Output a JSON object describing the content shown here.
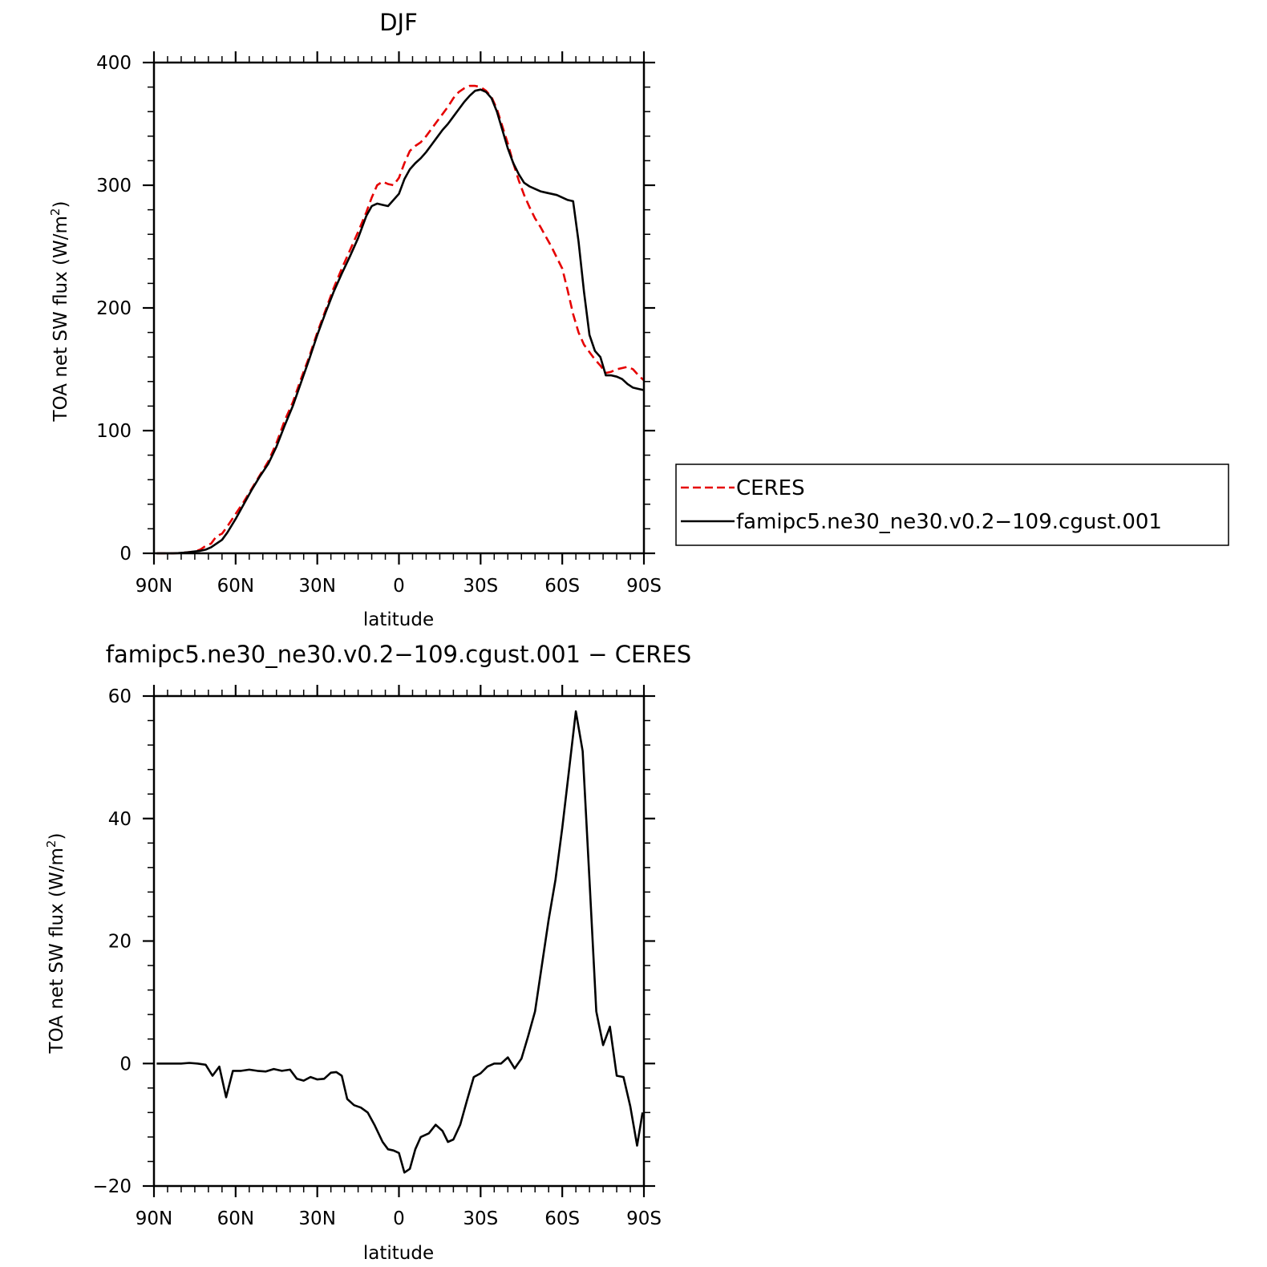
{
  "chart_data": [
    {
      "type": "line",
      "title": "DJF",
      "xlabel": "latitude",
      "ylabel": "TOA net SW flux (W/m²)",
      "ylabel_base": "TOA net SW flux (W/m",
      "ylabel_sup": "2",
      "ylabel_close": ")",
      "xlim": [
        -90,
        90
      ],
      "ylim": [
        0,
        400
      ],
      "x_ticks": [
        {
          "value": -90,
          "label": "90N"
        },
        {
          "value": -60,
          "label": "60N"
        },
        {
          "value": -30,
          "label": "30N"
        },
        {
          "value": 0,
          "label": "0"
        },
        {
          "value": 30,
          "label": "30S"
        },
        {
          "value": 60,
          "label": "60S"
        },
        {
          "value": 90,
          "label": "90S"
        }
      ],
      "y_ticks": [
        {
          "value": 0,
          "label": "0"
        },
        {
          "value": 100,
          "label": "100"
        },
        {
          "value": 200,
          "label": "200"
        },
        {
          "value": 300,
          "label": "300"
        },
        {
          "value": 400,
          "label": "400"
        }
      ],
      "grid": false,
      "legend_position": "right",
      "series": [
        {
          "name": "CERES",
          "color": "#e60000",
          "dash": true,
          "x": [
            -89,
            -87,
            -85,
            -83,
            -81,
            -79,
            -77,
            -75,
            -73,
            -71,
            -69,
            -67,
            -65,
            -63,
            -60,
            -57,
            -54,
            -51,
            -48,
            -45,
            -42,
            -39,
            -36,
            -33,
            -30,
            -27,
            -24,
            -21,
            -18,
            -15,
            -12,
            -10,
            -8,
            -6,
            -4,
            -2,
            0,
            2,
            4,
            6,
            8,
            10,
            12,
            14,
            16,
            18,
            20,
            22,
            24,
            26,
            28,
            30,
            32,
            34,
            36,
            38,
            40,
            42,
            44,
            46,
            48,
            50,
            52,
            54,
            56,
            58,
            60,
            62,
            64,
            66,
            68,
            70,
            72,
            74,
            76,
            78,
            80,
            82,
            84,
            86,
            88,
            90
          ],
          "y": [
            0,
            0,
            0,
            0,
            0.2,
            0.5,
            1,
            1.5,
            3,
            6,
            8,
            14,
            16,
            22,
            32,
            42,
            53,
            64,
            75,
            90,
            108,
            123,
            142,
            160,
            180,
            198,
            216,
            232,
            247,
            262,
            278,
            290,
            300,
            303,
            301,
            300,
            306,
            318,
            328,
            332,
            335,
            340,
            346,
            352,
            358,
            364,
            371,
            376,
            379,
            381,
            381,
            380,
            377,
            372,
            362,
            348,
            334,
            318,
            304,
            292,
            282,
            273,
            266,
            258,
            250,
            241,
            232,
            214,
            195,
            180,
            170,
            164,
            158,
            153,
            147,
            148,
            150,
            151,
            152,
            150,
            145,
            141
          ]
        },
        {
          "name": "famipc5.ne30_ne30.v0.2−109.cgust.001",
          "color": "#000000",
          "dash": false,
          "x": [
            -89,
            -87,
            -85,
            -83,
            -81,
            -79,
            -77,
            -75,
            -73,
            -71,
            -69,
            -67,
            -65,
            -63,
            -60,
            -57,
            -54,
            -51,
            -48,
            -45,
            -42,
            -39,
            -36,
            -33,
            -30,
            -27,
            -24,
            -21,
            -18,
            -15,
            -12,
            -10,
            -8,
            -6,
            -4,
            -2,
            0,
            2,
            4,
            6,
            8,
            10,
            12,
            14,
            16,
            18,
            20,
            22,
            24,
            26,
            28,
            30,
            32,
            34,
            36,
            38,
            40,
            42,
            44,
            46,
            48,
            50,
            52,
            54,
            56,
            58,
            60,
            62,
            64,
            66,
            68,
            70,
            72,
            74,
            76,
            78,
            80,
            82,
            84,
            86,
            88,
            90
          ],
          "y": [
            0,
            0,
            0,
            0,
            0.2,
            0.5,
            1,
            1.5,
            2,
            3,
            5,
            8,
            11,
            17,
            28,
            40,
            52,
            63,
            73,
            87,
            104,
            120,
            139,
            158,
            178,
            196,
            213,
            228,
            242,
            257,
            275,
            283,
            285,
            284,
            283,
            288,
            293,
            305,
            313,
            318,
            322,
            327,
            333,
            339,
            345,
            350,
            356,
            362,
            368,
            373,
            377,
            378,
            376,
            371,
            360,
            345,
            330,
            318,
            309,
            302,
            299,
            297,
            295,
            294,
            293,
            292,
            290,
            288,
            287,
            254,
            213,
            178,
            165,
            160,
            145,
            145,
            144,
            142,
            138,
            135,
            134,
            133
          ]
        }
      ]
    },
    {
      "type": "line",
      "title": "famipc5.ne30_ne30.v0.2−109.cgust.001  −  CERES",
      "xlabel": "latitude",
      "ylabel": "TOA net SW flux (W/m²)",
      "ylabel_base": "TOA net SW flux (W/m",
      "ylabel_sup": "2",
      "ylabel_close": ")",
      "xlim": [
        -90,
        90
      ],
      "ylim": [
        -20,
        60
      ],
      "x_ticks": [
        {
          "value": -90,
          "label": "90N"
        },
        {
          "value": -60,
          "label": "60N"
        },
        {
          "value": -30,
          "label": "30N"
        },
        {
          "value": 0,
          "label": "0"
        },
        {
          "value": 30,
          "label": "30S"
        },
        {
          "value": 60,
          "label": "60S"
        },
        {
          "value": 90,
          "label": "90S"
        }
      ],
      "y_ticks": [
        {
          "value": -20,
          "label": "−20"
        },
        {
          "value": 0,
          "label": "0"
        },
        {
          "value": 20,
          "label": "20"
        },
        {
          "value": 40,
          "label": "40"
        },
        {
          "value": 60,
          "label": "60"
        }
      ],
      "grid": false,
      "series": [
        {
          "color": "#000000",
          "dash": false,
          "x": [
            -89,
            -86,
            -83,
            -80,
            -77,
            -74,
            -71,
            -68.5,
            -66,
            -63.5,
            -61,
            -58,
            -55,
            -52,
            -49,
            -46,
            -43,
            -40,
            -37.5,
            -35,
            -32.5,
            -30,
            -27.5,
            -25,
            -23,
            -21,
            -19,
            -16.5,
            -14,
            -11.5,
            -9,
            -6,
            -4,
            -2,
            0,
            2,
            4,
            6,
            8,
            11,
            13.5,
            16,
            18,
            20,
            22.5,
            25,
            27.5,
            30,
            32.5,
            35,
            37.5,
            40,
            42.5,
            45,
            47.5,
            50,
            52.5,
            55,
            57.5,
            60,
            62.5,
            65,
            67.5,
            70,
            72.5,
            75,
            77.5,
            80,
            82.5,
            85,
            87.5,
            89.5
          ],
          "y": [
            0,
            0,
            0,
            0,
            0.1,
            0,
            -0.2,
            -2,
            -0.5,
            -5.5,
            -1.2,
            -1.2,
            -1,
            -1.2,
            -1.3,
            -0.9,
            -1.2,
            -1,
            -2.5,
            -2.8,
            -2.2,
            -2.6,
            -2.5,
            -1.5,
            -1.4,
            -2,
            -5.8,
            -6.8,
            -7.2,
            -8,
            -10,
            -12.8,
            -14,
            -14.2,
            -14.6,
            -17.8,
            -17.2,
            -14,
            -12,
            -11.4,
            -10,
            -11,
            -12.8,
            -12.4,
            -10,
            -6,
            -2.2,
            -1.6,
            -0.5,
            0,
            0,
            1,
            -0.8,
            0.8,
            4.5,
            8.5,
            16,
            23.5,
            30,
            38.5,
            48,
            57.5,
            51,
            30,
            8.5,
            3,
            6,
            -2,
            -2.2,
            -7,
            -13.4,
            -8
          ]
        }
      ]
    }
  ]
}
